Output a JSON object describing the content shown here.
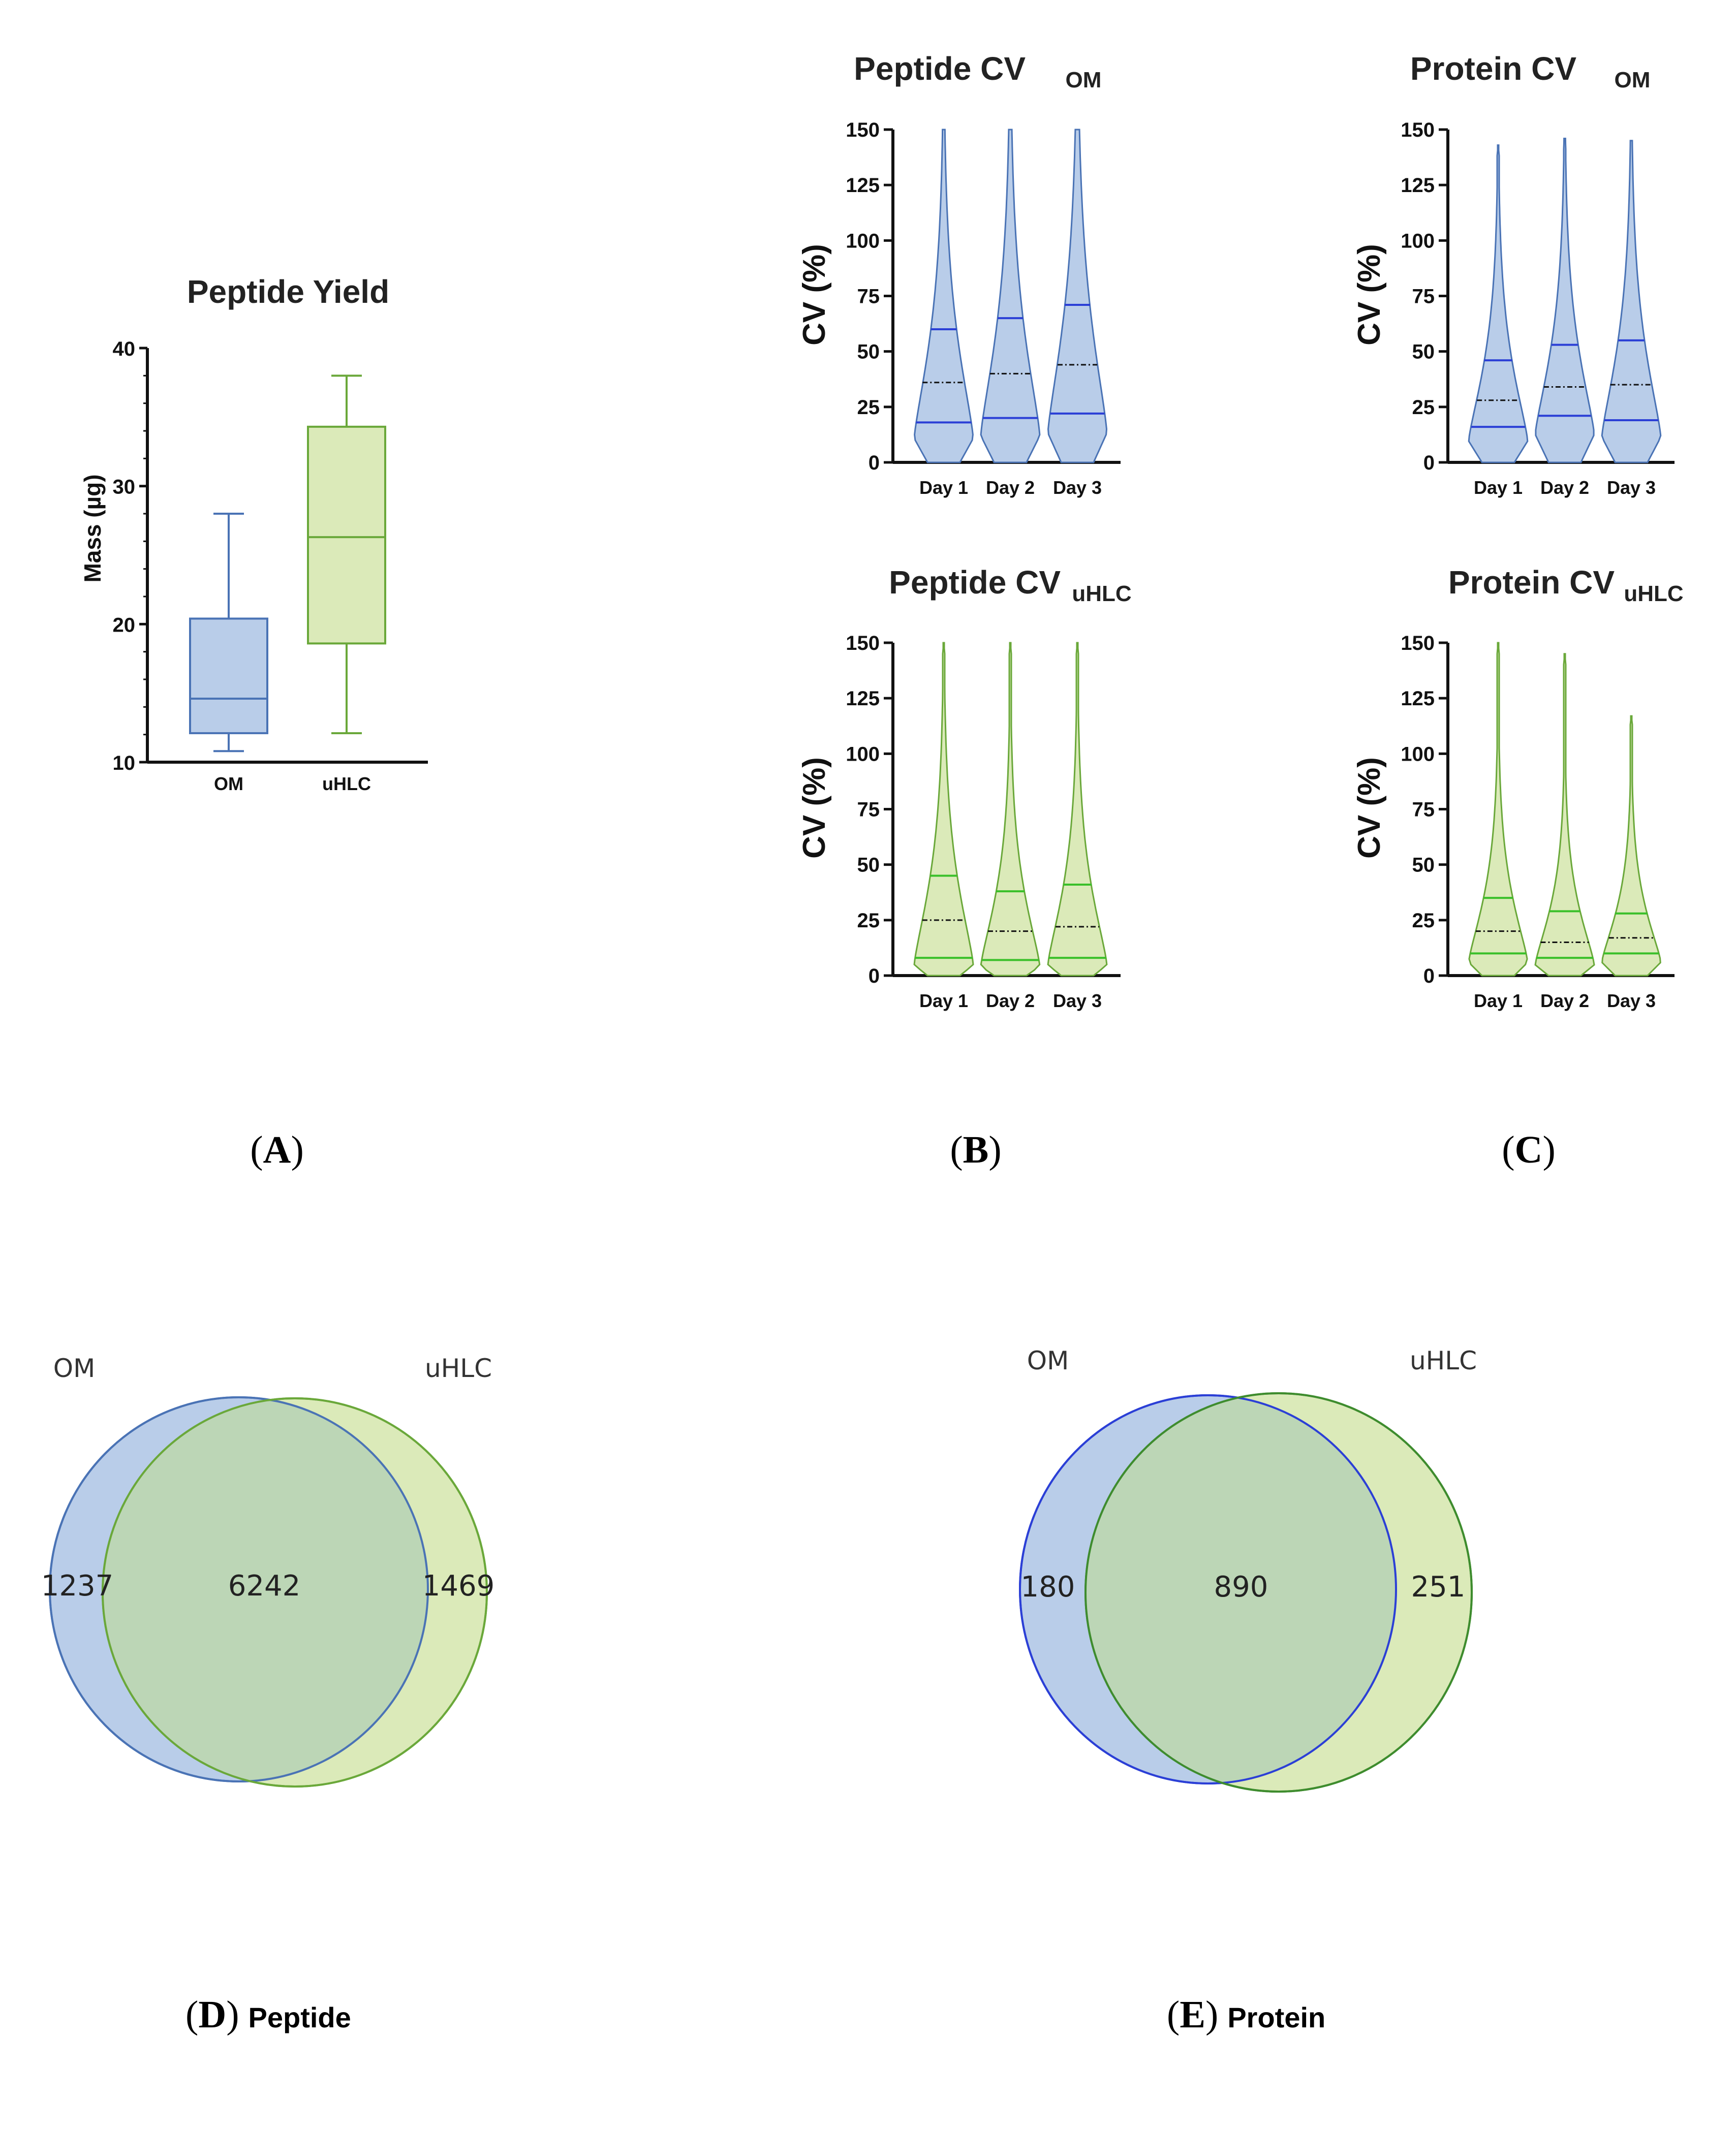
{
  "colors": {
    "om_fill": "#b9cde9",
    "om_stroke": "#4a73b5",
    "om_line": "#2b3fd6",
    "uhlc_fill": "#dbeab9",
    "uhlc_stroke": "#6aa83a",
    "uhlc_line": "#3ac02a",
    "overlap_fill": "#bcd6b6"
  },
  "chart_data": [
    {
      "id": "A",
      "type": "box",
      "title": "Peptide Yield",
      "ylabel": "Mass (µg)",
      "xlabel": "",
      "ylim": [
        10,
        40
      ],
      "yticks": [
        10,
        20,
        30,
        40
      ],
      "categories": [
        "OM",
        "uHLC"
      ],
      "boxes": [
        {
          "name": "OM",
          "min": 10.8,
          "q1": 12.1,
          "median": 14.6,
          "q3": 20.4,
          "max": 28.0
        },
        {
          "name": "uHLC",
          "min": 12.1,
          "q1": 18.6,
          "median": 26.3,
          "q3": 34.3,
          "max": 38.0
        }
      ]
    },
    {
      "id": "B1",
      "type": "violin",
      "group": "om",
      "title": "Peptide CV",
      "title_sub": "OM",
      "ylabel": "CV (%)",
      "ylim": [
        0,
        150
      ],
      "yticks": [
        0,
        25,
        50,
        75,
        100,
        125,
        150
      ],
      "categories": [
        "Day 1",
        "Day 2",
        "Day 3"
      ],
      "violins": [
        {
          "name": "Day 1",
          "q1": 18,
          "median": 36,
          "q3": 60,
          "max": 150
        },
        {
          "name": "Day 2",
          "q1": 20,
          "median": 40,
          "q3": 65,
          "max": 150
        },
        {
          "name": "Day 3",
          "q1": 22,
          "median": 44,
          "q3": 71,
          "max": 150
        }
      ]
    },
    {
      "id": "C1",
      "type": "violin",
      "group": "om",
      "title": "Protein CV",
      "title_sub": "OM",
      "ylabel": "CV (%)",
      "ylim": [
        0,
        150
      ],
      "yticks": [
        0,
        25,
        50,
        75,
        100,
        125,
        150
      ],
      "categories": [
        "Day 1",
        "Day 2",
        "Day 3"
      ],
      "violins": [
        {
          "name": "Day 1",
          "q1": 16,
          "median": 28,
          "q3": 46,
          "max": 143
        },
        {
          "name": "Day 2",
          "q1": 21,
          "median": 34,
          "q3": 53,
          "max": 146
        },
        {
          "name": "Day 3",
          "q1": 19,
          "median": 35,
          "q3": 55,
          "max": 145
        }
      ]
    },
    {
      "id": "B2",
      "type": "violin",
      "group": "uhlc",
      "title": "Peptide CV",
      "title_sub": "uHLC",
      "ylabel": "CV (%)",
      "ylim": [
        0,
        150
      ],
      "yticks": [
        0,
        25,
        50,
        75,
        100,
        125,
        150
      ],
      "categories": [
        "Day 1",
        "Day 2",
        "Day 3"
      ],
      "violins": [
        {
          "name": "Day 1",
          "q1": 8,
          "median": 25,
          "q3": 45,
          "max": 150
        },
        {
          "name": "Day 2",
          "q1": 7,
          "median": 20,
          "q3": 38,
          "max": 150
        },
        {
          "name": "Day 3",
          "q1": 8,
          "median": 22,
          "q3": 41,
          "max": 150
        }
      ]
    },
    {
      "id": "C2",
      "type": "violin",
      "group": "uhlc",
      "title": "Protein CV",
      "title_sub": "uHLC",
      "ylabel": "CV (%)",
      "ylim": [
        0,
        150
      ],
      "yticks": [
        0,
        25,
        50,
        75,
        100,
        125,
        150
      ],
      "categories": [
        "Day 1",
        "Day 2",
        "Day 3"
      ],
      "violins": [
        {
          "name": "Day 1",
          "q1": 10,
          "median": 20,
          "q3": 35,
          "max": 150
        },
        {
          "name": "Day 2",
          "q1": 8,
          "median": 15,
          "q3": 29,
          "max": 145
        },
        {
          "name": "Day 3",
          "q1": 10,
          "median": 17,
          "q3": 28,
          "max": 117
        }
      ]
    },
    {
      "id": "D",
      "type": "venn",
      "subject": "Peptide",
      "sets": [
        {
          "name": "OM",
          "only": 1237
        },
        {
          "name": "uHLC",
          "only": 1469
        }
      ],
      "overlap": 6242
    },
    {
      "id": "E",
      "type": "venn",
      "subject": "Protein",
      "sets": [
        {
          "name": "OM",
          "only": 180
        },
        {
          "name": "uHLC",
          "only": 251
        }
      ],
      "overlap": 890
    }
  ],
  "panel_labels": {
    "A": "A",
    "B": "B",
    "C": "C",
    "D": "D",
    "E": "E",
    "open": "(",
    "close": ")",
    "D_word": "Peptide",
    "E_word": "Protein"
  }
}
